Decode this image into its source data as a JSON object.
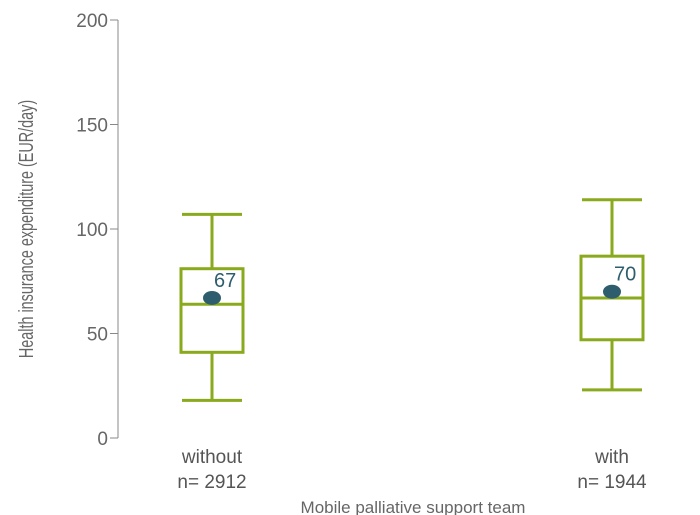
{
  "chart_data": {
    "type": "box",
    "title": "",
    "xlabel": "Mobile palliative support team",
    "ylabel": "Health insurance expenditure  (EUR/day)",
    "ylim": [
      0,
      200
    ],
    "yticks": [
      0,
      50,
      100,
      150,
      200
    ],
    "yticks_labels": [
      "0",
      "50",
      "100",
      "150",
      "200"
    ],
    "categories": [
      {
        "name": "without",
        "n_label": "n= 2912"
      },
      {
        "name": "with",
        "n_label": "n= 1944"
      }
    ],
    "boxes": [
      {
        "category": "without",
        "whisker_low": 18,
        "q1": 41,
        "median": 64,
        "q3": 81,
        "whisker_high": 107,
        "mean": 67,
        "mean_label": "67"
      },
      {
        "category": "with",
        "whisker_low": 23,
        "q1": 47,
        "median": 67,
        "q3": 87,
        "whisker_high": 114,
        "mean": 70,
        "mean_label": "70"
      }
    ],
    "colors": {
      "box": "#8aaa1e",
      "mean": "#2e5e6e",
      "axis": "#888888"
    }
  }
}
